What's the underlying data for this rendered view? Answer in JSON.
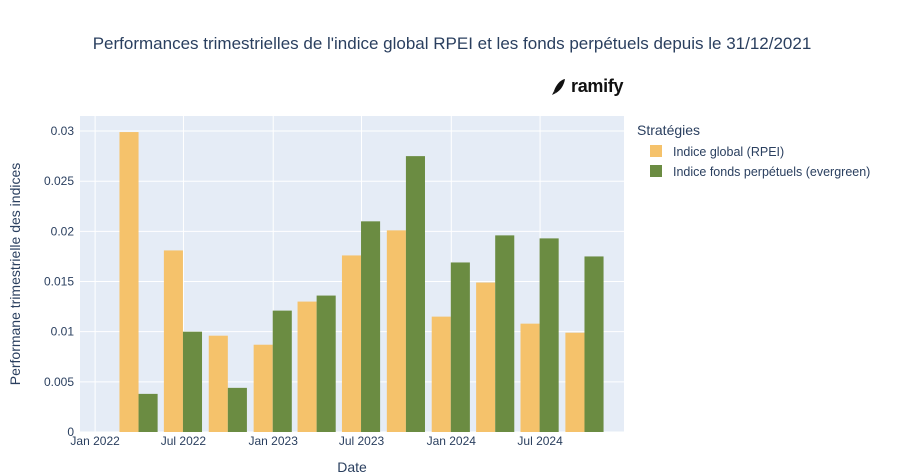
{
  "title": "Performances trimestrielles de l'indice global RPEI et les fonds perpétuels depuis le 31/12/2021",
  "logo_text": "ramify",
  "chart_data": {
    "type": "bar",
    "title": "Performances trimestrielles de l'indice global RPEI et les fonds perpétuels depuis le 31/12/2021",
    "xlabel": "Date",
    "ylabel": "Performane trimestrielle des indices",
    "ylim": [
      0,
      0.0315
    ],
    "yticks": [
      0,
      0.005,
      0.01,
      0.015,
      0.02,
      0.025,
      0.03
    ],
    "ytick_labels": [
      "0",
      "0.005",
      "0.01",
      "0.015",
      "0.02",
      "0.025",
      "0.03"
    ],
    "x_range": [
      "2021-12-01",
      "2024-12-20"
    ],
    "xticks": [
      "2022-01-01",
      "2022-07-01",
      "2023-01-01",
      "2023-07-01",
      "2024-01-01",
      "2024-07-01"
    ],
    "xtick_labels": [
      "Jan 2022",
      "Jul 2022",
      "Jan 2023",
      "Jul 2023",
      "Jan 2024",
      "Jul 2024"
    ],
    "x": [
      "2022-03-31",
      "2022-06-30",
      "2022-09-30",
      "2022-12-31",
      "2023-03-31",
      "2023-06-30",
      "2023-09-30",
      "2023-12-31",
      "2024-03-31",
      "2024-06-30",
      "2024-09-30"
    ],
    "legend_title": "Stratégies",
    "legend_position": "right",
    "grid": true,
    "series": [
      {
        "name": "Indice global (RPEI)",
        "color": "#f5c26b",
        "values": [
          0.0299,
          0.0181,
          0.0096,
          0.0087,
          0.013,
          0.0176,
          0.0201,
          0.0115,
          0.0149,
          0.0108,
          0.0099
        ]
      },
      {
        "name": "Indice fonds perpétuels (evergreen)",
        "color": "#6b8c42",
        "values": [
          0.0038,
          0.01,
          0.0044,
          0.0121,
          0.0136,
          0.021,
          0.0275,
          0.0169,
          0.0196,
          0.0193,
          0.0175
        ]
      }
    ]
  }
}
